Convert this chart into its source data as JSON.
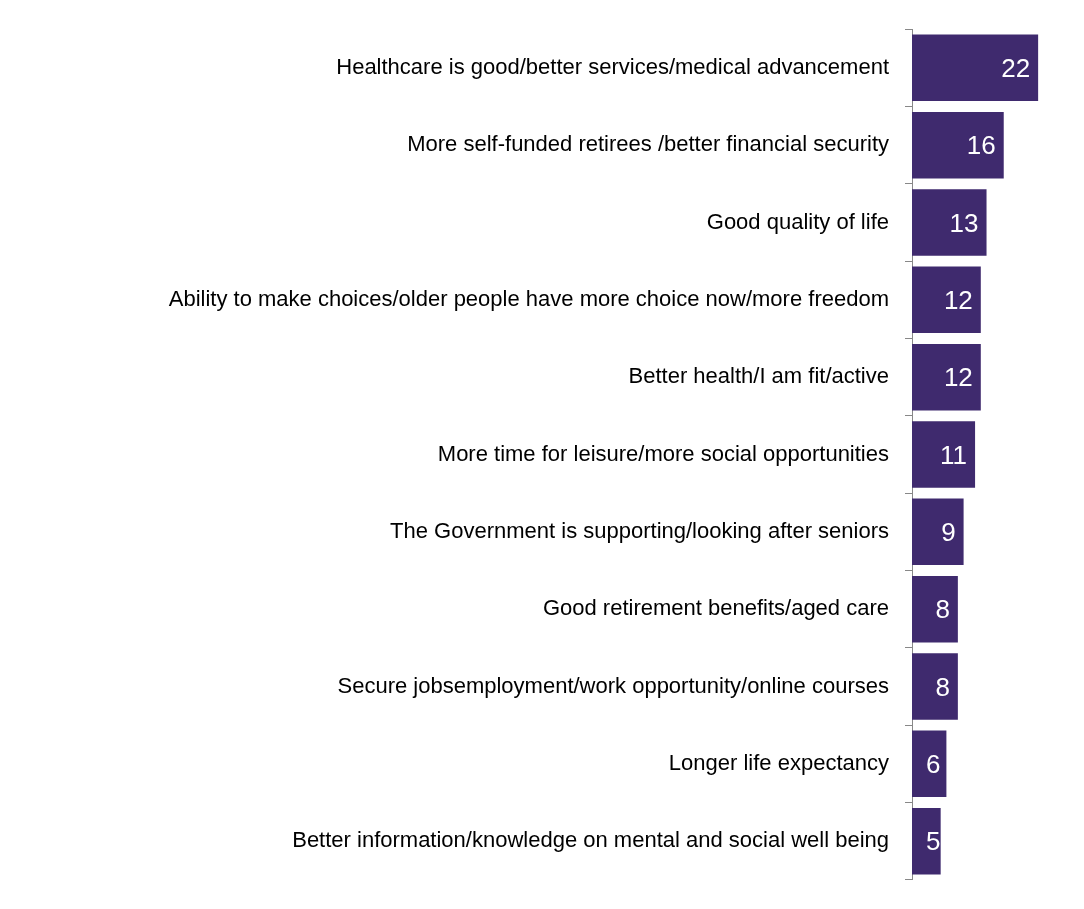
{
  "chart_data": {
    "type": "bar",
    "orientation": "horizontal",
    "categories": [
      "Healthcare is good/better services/medical advancement",
      "More self-funded retirees /better financial security",
      "Good quality of life",
      "Ability to make choices/older people have more choice now/more freedom",
      "Better health/I am fit/active",
      "More time for leisure/more social opportunities",
      "The Government is supporting/looking after seniors",
      "Good retirement benefits/aged care",
      "Secure jobsemployment/work opportunity/online courses",
      "Longer life expectancy",
      "Better information/knowledge on mental and social well being"
    ],
    "values": [
      22,
      16,
      13,
      12,
      12,
      11,
      9,
      8,
      8,
      6,
      5
    ],
    "color": "#3f2a6e",
    "data_labels": true
  }
}
